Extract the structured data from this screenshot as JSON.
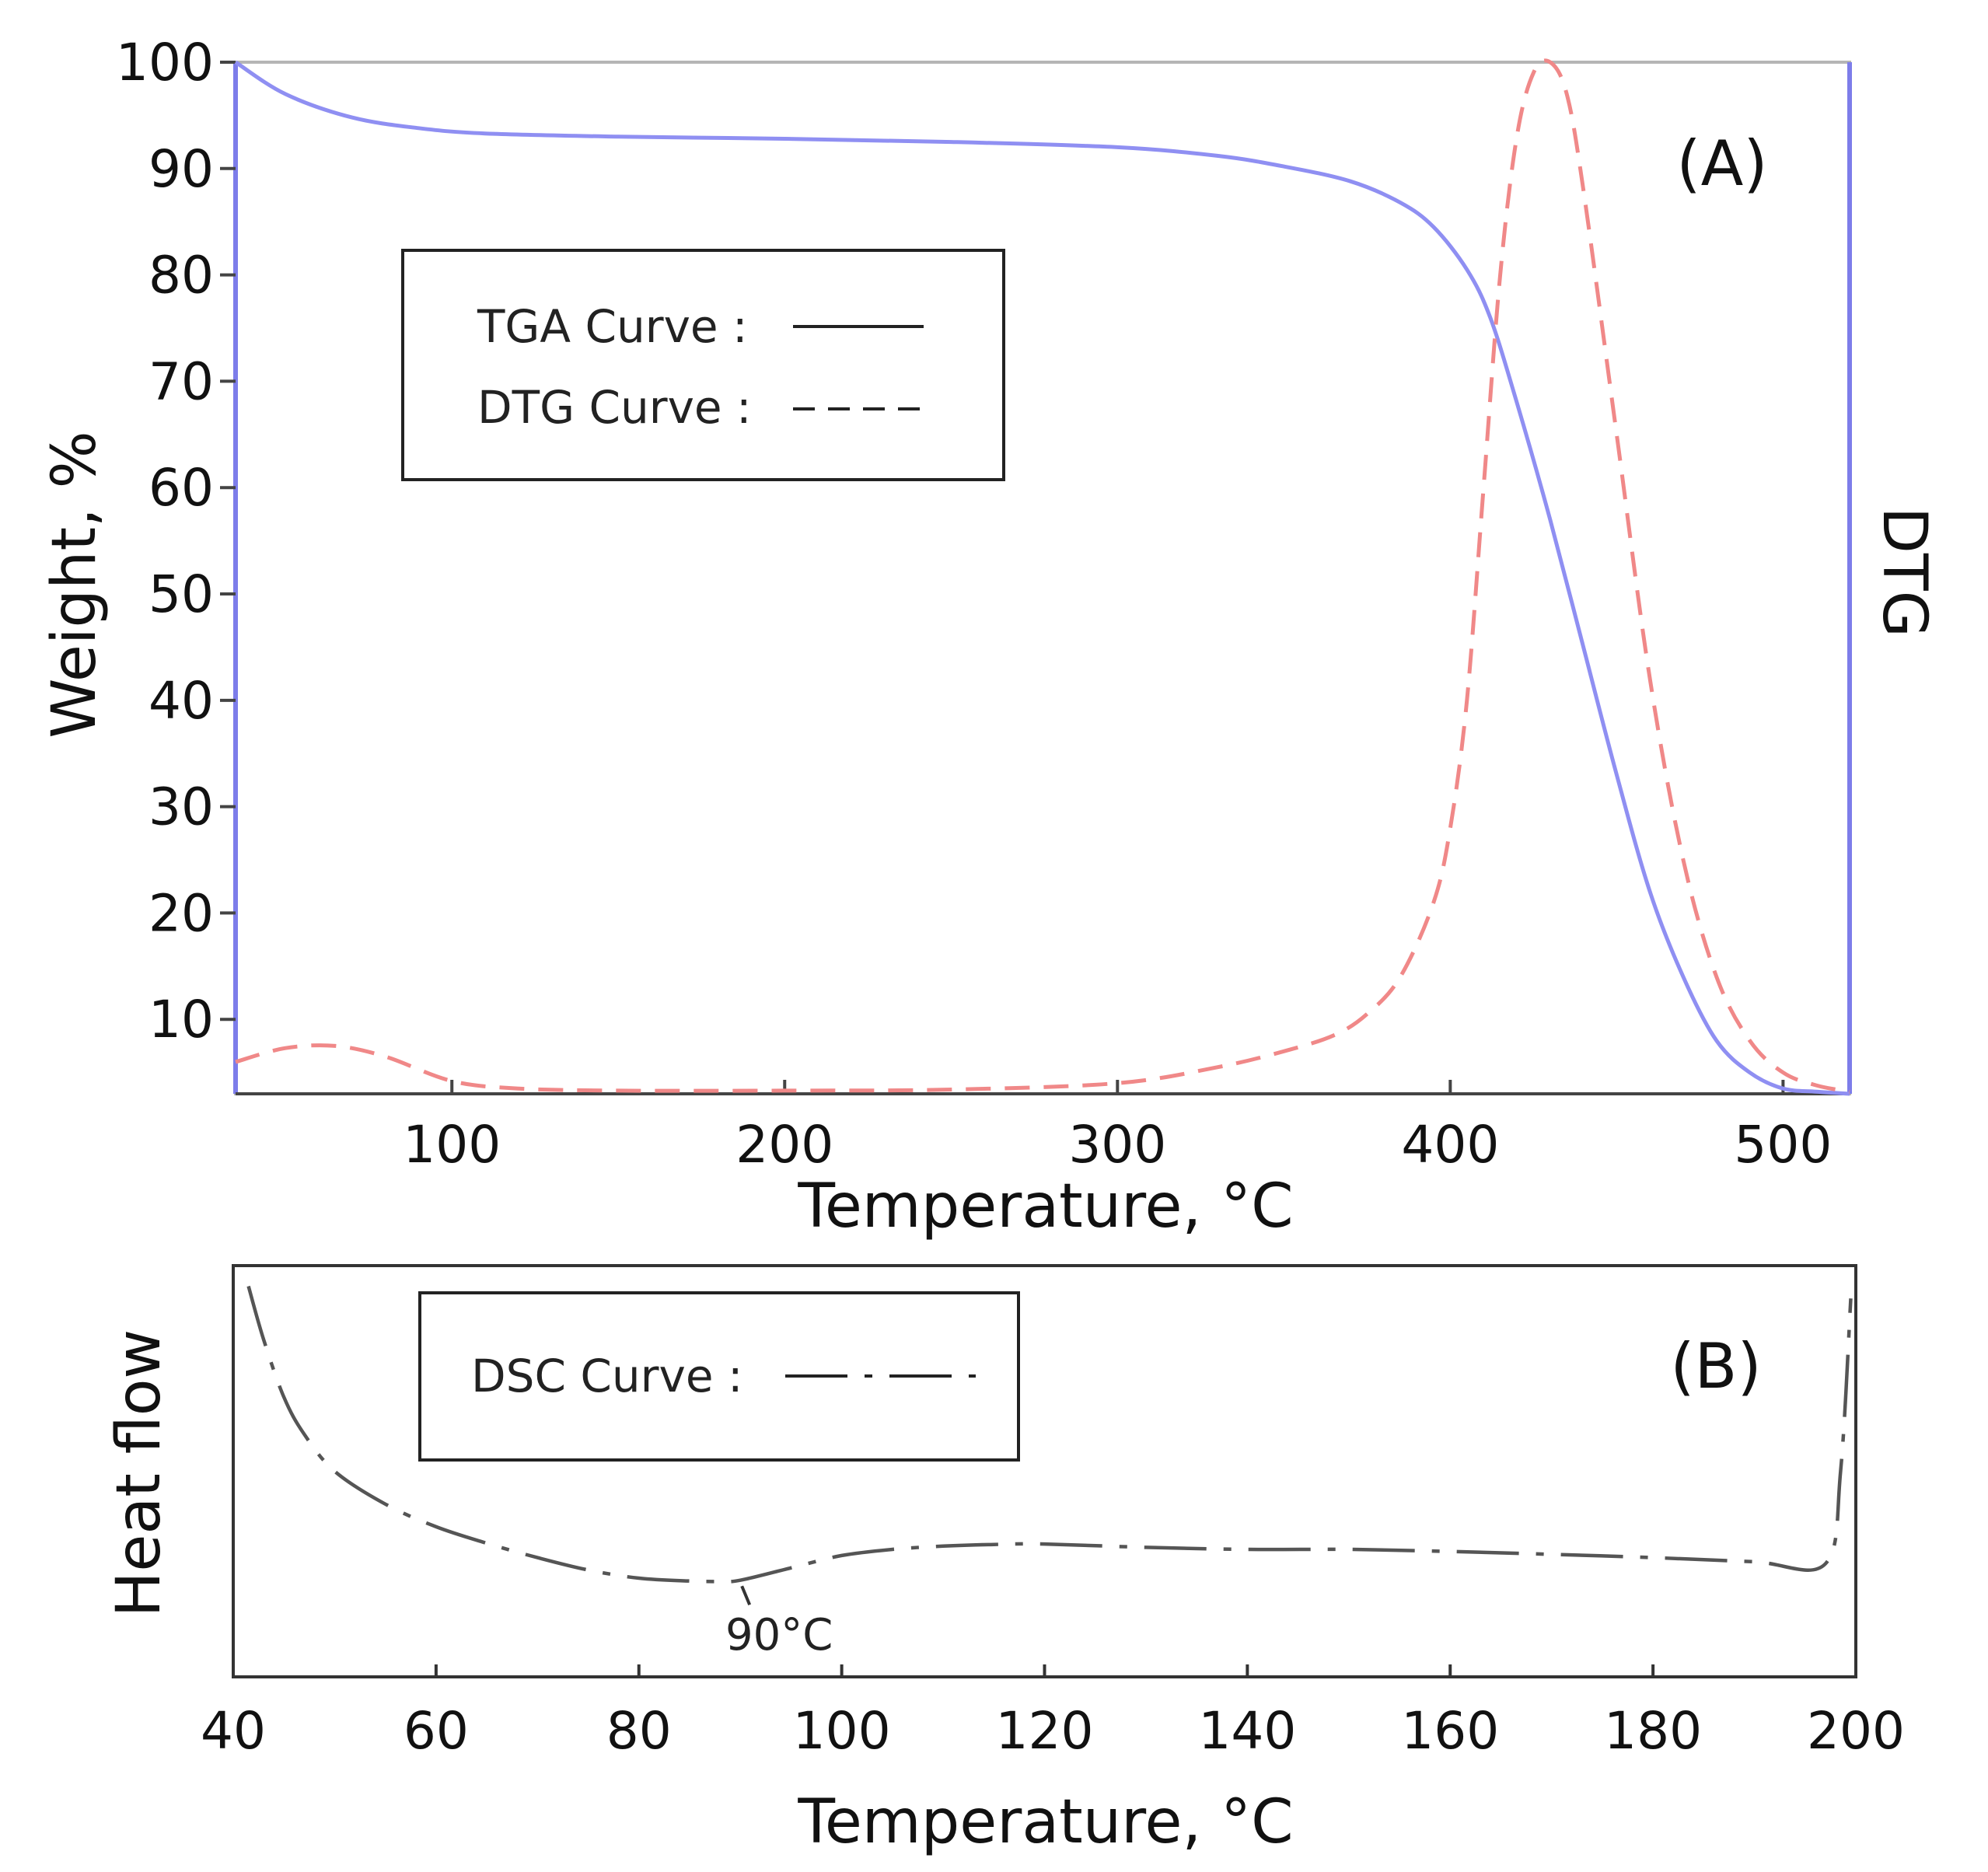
{
  "chart_data": [
    {
      "type": "line",
      "panel_label": "(A)",
      "xlabel": "Temperature, °C",
      "ylabel": "Weight, %",
      "y2label": "DTG",
      "xlim": [
        35,
        520
      ],
      "ylim": [
        3,
        100
      ],
      "x_ticks": [
        100,
        200,
        300,
        400,
        500
      ],
      "y_ticks": [
        10,
        20,
        30,
        40,
        50,
        60,
        70,
        80,
        90,
        100
      ],
      "grid": false,
      "legend_position": "upper-left",
      "series": [
        {
          "name": "TGA Curve :",
          "line_style": "solid",
          "color": "#8f8ff2",
          "axis": "left",
          "x": [
            35,
            50,
            70,
            90,
            110,
            150,
            200,
            250,
            300,
            330,
            350,
            370,
            385,
            395,
            405,
            412,
            420,
            430,
            440,
            450,
            460,
            470,
            480,
            490,
            500,
            510,
            520
          ],
          "y": [
            100,
            97,
            94.8,
            93.8,
            93.3,
            93,
            92.8,
            92.5,
            92,
            91.2,
            90.2,
            88.8,
            86.8,
            84.5,
            80.5,
            76,
            68,
            57,
            45,
            33,
            22,
            14,
            8,
            5,
            3.5,
            3.2,
            3
          ]
        },
        {
          "name": "DTG Curve :",
          "line_style": "dashed",
          "color": "#f08888",
          "axis": "right",
          "x": [
            35,
            50,
            65,
            80,
            100,
            120,
            150,
            200,
            250,
            300,
            330,
            350,
            365,
            375,
            385,
            395,
            400,
            405,
            410,
            415,
            420,
            425,
            430,
            435,
            440,
            450,
            460,
            470,
            480,
            490,
            500,
            510,
            520
          ],
          "y": [
            6,
            7.3,
            7.5,
            6.5,
            4.2,
            3.5,
            3.3,
            3.3,
            3.4,
            4,
            5.5,
            7,
            8.5,
            10.5,
            14,
            21,
            28,
            40,
            60,
            80,
            93,
            99,
            100,
            97,
            88,
            65,
            42,
            25,
            14,
            8,
            5,
            3.8,
            3.2
          ]
        }
      ]
    },
    {
      "type": "line",
      "panel_label": "(B)",
      "xlabel": "Temperature, °C",
      "ylabel": "Heat flow",
      "xlim": [
        40,
        200
      ],
      "x_ticks": [
        40,
        60,
        80,
        100,
        120,
        140,
        160,
        180,
        200
      ],
      "ylim": [
        0,
        100
      ],
      "y_ticks": [],
      "grid": false,
      "legend_position": "upper-left",
      "annotations": [
        {
          "text": "90°C",
          "x": 90
        }
      ],
      "series": [
        {
          "name": "DSC Curve :",
          "line_style": "dash-dot",
          "color": "#555555",
          "x": [
            41.5,
            43,
            45,
            47,
            50,
            55,
            60,
            65,
            70,
            75,
            80,
            85,
            88,
            90,
            95,
            100,
            105,
            110,
            115,
            120,
            130,
            140,
            150,
            160,
            170,
            180,
            190,
            197,
            198.5,
            199.5
          ],
          "y": [
            95,
            82,
            68,
            59,
            50,
            42,
            36.5,
            32.5,
            29,
            26,
            24,
            23.3,
            23.2,
            23.5,
            26.5,
            29.5,
            31,
            31.8,
            32.2,
            32.3,
            31.5,
            31,
            31,
            30.5,
            29.8,
            29,
            28,
            27.5,
            50,
            92
          ]
        }
      ]
    }
  ]
}
